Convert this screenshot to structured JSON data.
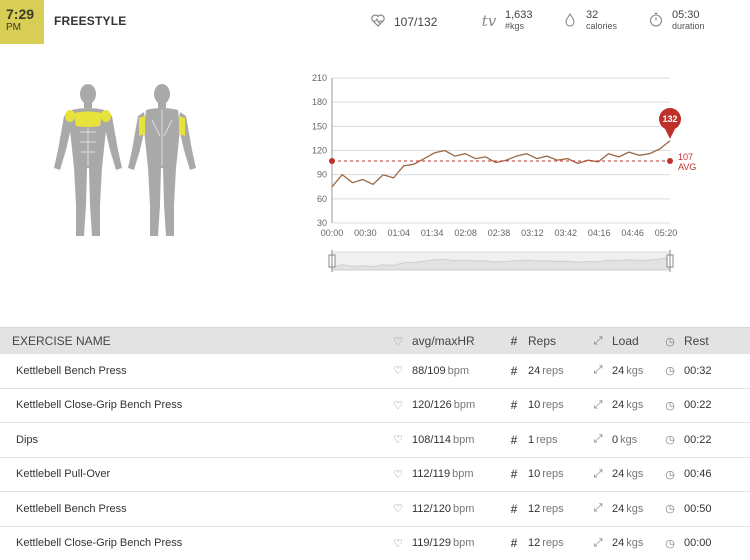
{
  "header": {
    "time": "7:29",
    "ampm": "PM",
    "title": "FREESTYLE",
    "heart_rate": "107/132",
    "tv_icon": "tv",
    "weight_value": "1,633",
    "weight_unit": "#kgs",
    "calories_value": "32",
    "calories_unit": "calories",
    "duration_value": "05:30",
    "duration_unit": "duration"
  },
  "colors": {
    "accent": "#d8cd55",
    "muscle_highlight": "#e8e33a",
    "line": "#9b6a45",
    "peak": "#c0302a",
    "avg": "#c0302a"
  },
  "chart_data": {
    "type": "line",
    "title": "",
    "xlabel": "",
    "ylabel": "",
    "ylim": [
      30,
      210
    ],
    "yticks": [
      "210",
      "180",
      "150",
      "120",
      "90",
      "60",
      "30"
    ],
    "xticks": [
      "00:00",
      "00:30",
      "01:04",
      "01:34",
      "02:08",
      "02:38",
      "03:12",
      "03:42",
      "04:16",
      "04:46",
      "05:20"
    ],
    "avg_value": "107",
    "avg_label": "AVG",
    "peak_label": "132",
    "grid": true,
    "x": [
      0,
      10,
      20,
      30,
      40,
      50,
      60,
      70,
      80,
      90,
      100,
      110,
      120,
      130,
      140,
      150,
      160,
      170,
      180,
      190,
      200,
      210,
      220,
      230,
      240,
      250,
      260,
      270,
      280,
      290,
      300,
      310,
      320,
      330
    ],
    "series": [
      {
        "values": [
          75,
          90,
          80,
          84,
          78,
          90,
          86,
          101,
          103,
          110,
          117,
          120,
          113,
          116,
          110,
          112,
          105,
          108,
          113,
          116,
          110,
          113,
          108,
          110,
          104,
          108,
          106,
          116,
          112,
          118,
          114,
          116,
          122,
          132
        ]
      }
    ]
  },
  "table": {
    "headers": {
      "name": "EXERCISE NAME",
      "hr": "avg/maxHR",
      "reps": "Reps",
      "load": "Load",
      "rest": "Rest"
    },
    "rows": [
      {
        "name": "Kettlebell Bench Press",
        "hr": "88/109",
        "hr_unit": "bpm",
        "reps": "24",
        "reps_unit": "reps",
        "load": "24",
        "load_unit": "kgs",
        "rest": "00:32"
      },
      {
        "name": "Kettlebell Close-Grip Bench Press",
        "hr": "120/126",
        "hr_unit": "bpm",
        "reps": "10",
        "reps_unit": "reps",
        "load": "24",
        "load_unit": "kgs",
        "rest": "00:22"
      },
      {
        "name": "Dips",
        "hr": "108/114",
        "hr_unit": "bpm",
        "reps": "1",
        "reps_unit": "reps",
        "load": "0",
        "load_unit": "kgs",
        "rest": "00:22"
      },
      {
        "name": "Kettlebell Pull-Over",
        "hr": "112/119",
        "hr_unit": "bpm",
        "reps": "10",
        "reps_unit": "reps",
        "load": "24",
        "load_unit": "kgs",
        "rest": "00:46"
      },
      {
        "name": "Kettlebell Bench Press",
        "hr": "112/120",
        "hr_unit": "bpm",
        "reps": "12",
        "reps_unit": "reps",
        "load": "24",
        "load_unit": "kgs",
        "rest": "00:50"
      },
      {
        "name": "Kettlebell Close-Grip Bench Press",
        "hr": "119/129",
        "hr_unit": "bpm",
        "reps": "12",
        "reps_unit": "reps",
        "load": "24",
        "load_unit": "kgs",
        "rest": "00:00"
      }
    ]
  },
  "icons": {
    "heart": "heart-rate-icon",
    "weight": "weight-icon",
    "calories": "flame-icon",
    "duration": "stopwatch-icon",
    "reps": "hash-icon",
    "load": "expand-arrows-icon",
    "rest": "clock-icon"
  }
}
